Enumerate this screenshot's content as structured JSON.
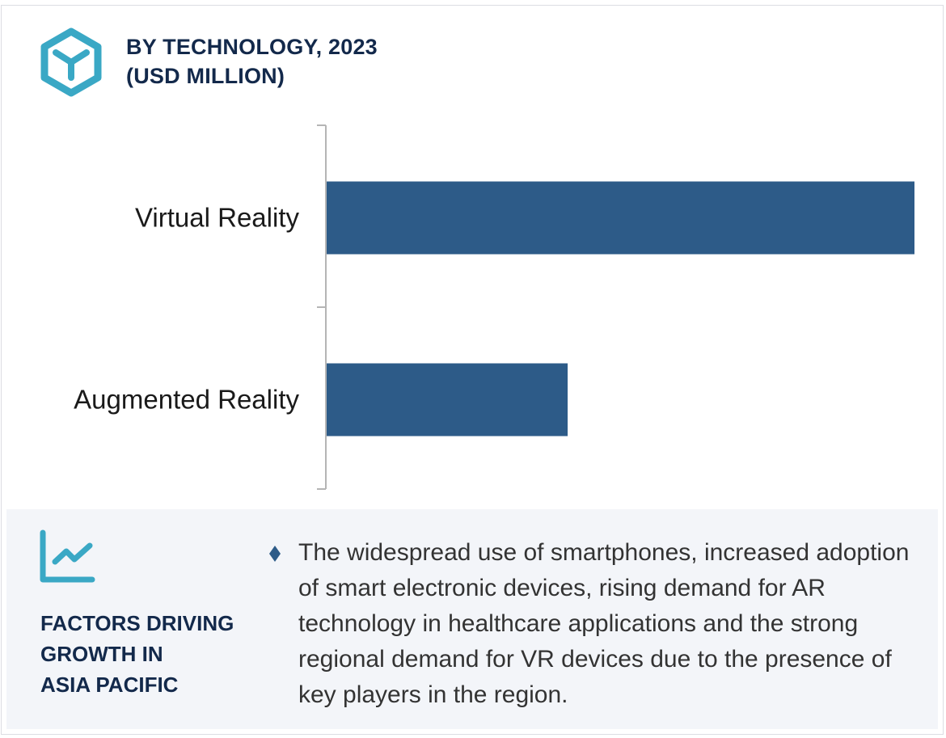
{
  "header": {
    "icon": "cube-icon",
    "title_line1": "BY TECHNOLOGY, 2023",
    "title_line2": "(USD MILLION)"
  },
  "colors": {
    "bar": "#2d5b88",
    "accent_icon": "#3aa8c5",
    "title": "#13294b",
    "panel_bg": "#f3f5f9",
    "axis": "#b5b5b5"
  },
  "chart_data": {
    "type": "bar",
    "orientation": "horizontal",
    "title": "BY TECHNOLOGY, 2023 (USD MILLION)",
    "categories": [
      "Virtual Reality",
      "Augmented Reality"
    ],
    "values": [
      100,
      41
    ],
    "value_note": "relative lengths only; no axis values shown",
    "xlabel": "",
    "ylabel": "",
    "xlim": [
      0,
      100
    ],
    "grid": false,
    "legend": "none"
  },
  "panel": {
    "icon": "trend-chart-icon",
    "title_lines": [
      "FACTORS DRIVING",
      "GROWTH IN",
      "ASIA PACIFIC"
    ],
    "bullet_icon": "diamond-bullet-icon",
    "text": "The widespread use of smartphones, increased adoption of smart electronic devices, rising demand for AR technology in healthcare applications and the strong regional demand for VR devices due to the presence of key players in the region."
  }
}
